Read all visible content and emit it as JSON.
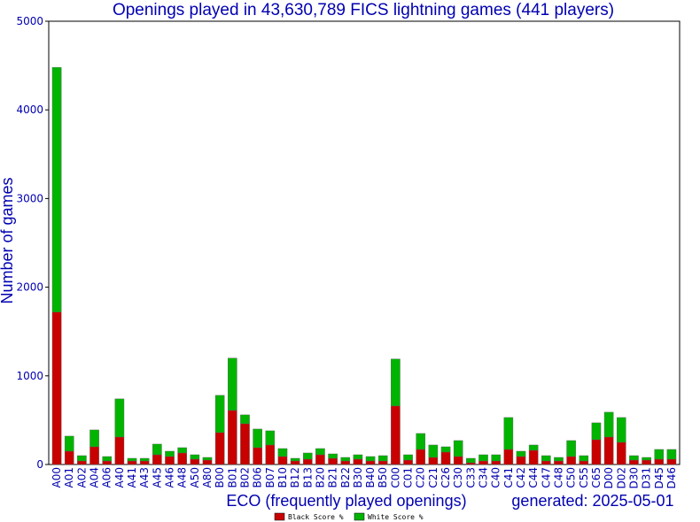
{
  "chart_data": {
    "type": "bar",
    "stacked": true,
    "title": "Openings played in 43,630,789 FICS lightning games (441 players)",
    "xlabel": "ECO (frequently played openings)",
    "ylabel": "Number of games",
    "footer": "generated: 2025-05-01",
    "ylim": [
      0,
      5000
    ],
    "yticks": [
      0,
      1000,
      2000,
      3000,
      4000,
      5000
    ],
    "grid": false,
    "legend_placement": "bottom-center",
    "categories": [
      "A00",
      "A01",
      "A02",
      "A04",
      "A06",
      "A40",
      "A41",
      "A43",
      "A45",
      "A46",
      "A48",
      "A50",
      "A80",
      "B00",
      "B01",
      "B02",
      "B06",
      "B07",
      "B10",
      "B12",
      "B13",
      "B20",
      "B21",
      "B22",
      "B30",
      "B40",
      "B50",
      "C00",
      "C01",
      "C20",
      "C21",
      "C26",
      "C30",
      "C33",
      "C34",
      "C40",
      "C41",
      "C42",
      "C44",
      "C47",
      "C48",
      "C50",
      "C55",
      "C65",
      "D00",
      "D02",
      "D30",
      "D31",
      "D45",
      "D46"
    ],
    "series": [
      {
        "name": "Black Score %",
        "color": "#c80000",
        "values": [
          1720,
          150,
          40,
          200,
          40,
          310,
          40,
          40,
          110,
          90,
          130,
          60,
          50,
          360,
          610,
          460,
          190,
          220,
          90,
          40,
          60,
          110,
          70,
          40,
          60,
          40,
          40,
          660,
          50,
          170,
          80,
          140,
          90,
          20,
          40,
          40,
          170,
          90,
          160,
          40,
          40,
          90,
          40,
          280,
          310,
          250,
          50,
          50,
          60,
          60
        ]
      },
      {
        "name": "White Score %",
        "color": "#00b400",
        "values": [
          2760,
          170,
          60,
          190,
          50,
          430,
          30,
          30,
          120,
          60,
          60,
          50,
          30,
          420,
          590,
          100,
          210,
          160,
          90,
          30,
          70,
          70,
          50,
          40,
          50,
          50,
          60,
          530,
          60,
          180,
          140,
          60,
          180,
          50,
          70,
          70,
          360,
          60,
          60,
          60,
          40,
          180,
          60,
          190,
          280,
          280,
          50,
          30,
          110,
          110
        ]
      }
    ]
  }
}
